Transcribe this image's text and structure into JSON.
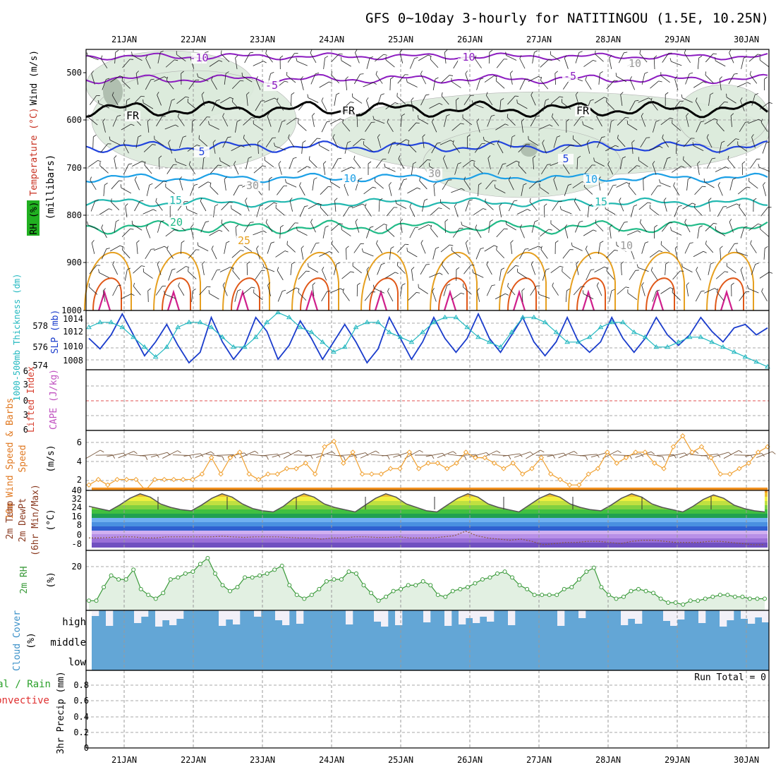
{
  "title": "GFS 0~10day 3-hourly for NATITINGOU (1.5E, 10.25N)",
  "days": [
    "21JAN",
    "22JAN",
    "23JAN",
    "24JAN",
    "25JAN",
    "26JAN",
    "27JAN",
    "28JAN",
    "29JAN",
    "30JAN"
  ],
  "colors": {
    "purple": "#8c1cc0",
    "blue": "#2244dd",
    "lightblue": "#1ca0e6",
    "teal": "#22b8b0",
    "green": "#22bb88",
    "orange": "#e6a020",
    "darkorange": "#e05818",
    "magenta": "#d0208c",
    "rhfill": "#dcebdc",
    "cloud": "#63a6d6",
    "slp": "#1a3ccc",
    "thick": "#22b8c0",
    "wind": "#f0a030",
    "temp": "#555555",
    "rh2m": "#3a9a3a"
  },
  "panels": {
    "upper": {
      "ylabel_wind": "Wind (m/s)",
      "ylabel_temp": "Temperature (°C)",
      "ylabel_mb": "(millibars)",
      "ylabel_rh": "RH (%)",
      "yticks": [
        "500",
        "600",
        "700",
        "800",
        "900",
        "1000"
      ],
      "contour_labels": {
        "m10": "-10",
        "m5": "-5",
        "fr": "FR",
        "c5": "5",
        "c10": "10",
        "c15": "15",
        "c20": "20",
        "c25": "25",
        "rh10": "10",
        "rh30": "30"
      }
    },
    "slp": {
      "ylabel_thick": "1000-500mb Thickness (dm)",
      "ylabel_slp": "SLP (mb)",
      "left_ticks": [
        "578",
        "576",
        "574"
      ],
      "right_ticks": [
        "1014",
        "1012",
        "1010",
        "1008"
      ]
    },
    "cape": {
      "ylabel_li": "Lifted Index",
      "ylabel_cape": "CAPE (J/kg)",
      "yticks": [
        "6",
        "3",
        "0",
        "3",
        "6"
      ]
    },
    "wind10m": {
      "ylabel": "10m Wind Speed & Barbs",
      "ylabel_speed": "Speed",
      "ylabel_unit": "(m/s)",
      "yticks": [
        "6",
        "4",
        "2"
      ]
    },
    "temp2m": {
      "ylabel": "2m Temp",
      "ylabel2": "2m DewPt",
      "ylabel3": "(6hr Min/Max)",
      "ylabel_unit": "(°C)",
      "yticks": [
        "40",
        "32",
        "24",
        "16",
        "8",
        "0",
        "-8"
      ]
    },
    "rh2m": {
      "ylabel": "2m RH",
      "ylabel_unit": "(%)",
      "yticks": [
        "20"
      ]
    },
    "cloud": {
      "ylabel": "Cloud Cover",
      "ylabel_unit": "(%)",
      "levels": [
        "high",
        "middle",
        "low"
      ]
    },
    "precip": {
      "ylabel": "3hr Precip (mm)",
      "ylabel_total": "Total / Rain",
      "ylabel_conv": "Convective",
      "yticks": [
        "0.8",
        "0.6",
        "0.4",
        "0.2",
        "0"
      ],
      "run_total": "Run Total = 0"
    }
  },
  "chart_data": [
    {
      "type": "line",
      "panel": "slp",
      "name": "SLP (mb)",
      "ylim": [
        1006.5,
        1015
      ],
      "values": [
        1011,
        1009.5,
        1011.5,
        1014.5,
        1011.5,
        1008.5,
        1010.5,
        1013,
        1010,
        1007.5,
        1009,
        1014,
        1010.5,
        1008,
        1010,
        1014,
        1012,
        1008,
        1010,
        1013.5,
        1011,
        1008,
        1010.5,
        1013,
        1010.5,
        1007.5,
        1009.5,
        1014,
        1011,
        1008,
        1010.5,
        1014,
        1011,
        1009,
        1011,
        1014.5,
        1011,
        1009,
        1011.5,
        1014,
        1010.5,
        1008.5,
        1010.5,
        1014,
        1010.5,
        1009,
        1010.5,
        1014,
        1011,
        1009,
        1011,
        1014,
        1011.5,
        1010,
        1011.5,
        1014,
        1012,
        1010.5,
        1012.5,
        1013,
        1011.5,
        1012.5
      ]
    },
    {
      "type": "line",
      "panel": "slp",
      "name": "1000-500mb Thickness (dm)",
      "ylim": [
        573.2,
        579.2
      ],
      "values": [
        577.5,
        578,
        578,
        577.5,
        576.5,
        575.5,
        574.5,
        575.5,
        577.5,
        578,
        578,
        577.5,
        576.5,
        575.5,
        575.5,
        576.5,
        578,
        579,
        578.5,
        577.5,
        577,
        576,
        575,
        575.5,
        577.5,
        578,
        578,
        577,
        576.5,
        576,
        577,
        578,
        578.5,
        578.5,
        577.5,
        576.5,
        576,
        575.5,
        577,
        578.5,
        578.5,
        578,
        577,
        576,
        576,
        576.5,
        577.5,
        578,
        578,
        577,
        576.5,
        575.5,
        575.5,
        576,
        576.5,
        576.5,
        576,
        575.5,
        575,
        574.5,
        574,
        573.5
      ]
    },
    {
      "type": "line",
      "panel": "wind10m",
      "name": "10m Wind Speed",
      "ylim": [
        1.5,
        7
      ],
      "values": [
        2,
        2.5,
        2,
        2.5,
        2.5,
        2.5,
        1.5,
        2.5,
        2.5,
        2.5,
        2.5,
        2.5,
        3,
        4.5,
        3,
        4.5,
        5,
        3,
        2.5,
        3,
        3,
        3.5,
        3.5,
        4,
        3,
        5.5,
        6,
        4,
        5,
        3,
        3,
        3,
        3.5,
        3.5,
        5,
        3.5,
        4,
        4,
        3.5,
        4,
        5,
        4.5,
        4.5,
        4,
        3.5,
        4,
        3,
        3.5,
        4.5,
        3,
        2.5,
        2,
        2,
        3,
        3.5,
        5,
        4,
        4.5,
        5,
        5,
        4,
        3.5,
        5.5,
        6.5,
        5,
        5.5,
        4.5,
        3,
        3,
        3.5,
        4,
        5,
        5.5
      ]
    },
    {
      "type": "area",
      "panel": "temp2m",
      "name": "2m Temp",
      "ylim": [
        -13,
        40
      ],
      "values": [
        26,
        24,
        22,
        27,
        33,
        37,
        34,
        28,
        25,
        23,
        22,
        27,
        33,
        37,
        34,
        28,
        24,
        22,
        21,
        26,
        33,
        37,
        34,
        28,
        25,
        23,
        21,
        27,
        33,
        37,
        34,
        28,
        25,
        22,
        21,
        27,
        33,
        37,
        34,
        28,
        25,
        23,
        21,
        27,
        33,
        37,
        34,
        28,
        25,
        23,
        22,
        27,
        33,
        37,
        34,
        28,
        25,
        23,
        21,
        26,
        32,
        36,
        33,
        27,
        24,
        22,
        21
      ]
    },
    {
      "type": "line",
      "panel": "temp2m",
      "name": "2m DewPt",
      "ylim": [
        -13,
        40
      ],
      "values": [
        -2,
        -2,
        -1.5,
        -1,
        -1,
        -2,
        -2,
        -1,
        -1,
        -1,
        -1,
        -1,
        -0.5,
        -1,
        -1.5,
        -1,
        -1,
        -1,
        -1.5,
        -2,
        -2,
        -3,
        -2,
        -2,
        -1,
        -1,
        -1.5,
        -1.5,
        -1,
        -2,
        -2,
        -2,
        -1,
        0,
        4,
        0,
        -2,
        -3,
        -4,
        -3,
        -5,
        -8,
        -7,
        -6,
        -6,
        -5,
        -5,
        -6,
        -7,
        -5,
        -4,
        -4,
        -5,
        -6,
        -6,
        -6,
        -5,
        -5,
        -6,
        -7,
        -8,
        -8
      ]
    },
    {
      "type": "line",
      "panel": "rh2m",
      "name": "2m RH",
      "ylim": [
        0,
        31
      ],
      "values": [
        5,
        5,
        12,
        18,
        16,
        16,
        21,
        11,
        8,
        6,
        9,
        16,
        17,
        19,
        20,
        24,
        27,
        19,
        13,
        10,
        12,
        17,
        17,
        18,
        19,
        21,
        23,
        13,
        8,
        6,
        8,
        11,
        15,
        16,
        16,
        20,
        19,
        13,
        9,
        5,
        7,
        10,
        11,
        13,
        13,
        15,
        13,
        8,
        7,
        10,
        11,
        12,
        14,
        16,
        17,
        19,
        20,
        17,
        13,
        11,
        8,
        8,
        8,
        8,
        11,
        12,
        16,
        20,
        22,
        12,
        8,
        6,
        7,
        10,
        11,
        10,
        9,
        6,
        4,
        4,
        3,
        5,
        5,
        6,
        7,
        8,
        8,
        7,
        7,
        6,
        6,
        6
      ]
    },
    {
      "type": "bar",
      "panel": "cloud",
      "name": "High cloud cover gaps",
      "values": [
        1,
        0,
        1,
        0,
        0,
        0,
        1,
        1,
        0,
        1,
        1,
        1,
        1,
        0,
        0,
        0,
        0,
        0,
        1,
        1,
        1,
        0,
        0,
        1,
        0,
        0,
        1,
        1,
        0,
        1,
        0,
        0,
        0,
        0,
        0,
        0,
        1,
        0,
        0,
        0,
        1,
        1,
        0,
        1,
        0,
        0,
        0,
        1,
        0,
        0,
        1,
        0,
        1,
        1,
        1,
        1,
        1,
        0,
        0,
        1,
        0,
        0,
        0,
        0,
        0,
        0,
        1,
        0,
        0,
        1,
        0,
        0,
        0,
        0,
        0,
        1,
        1,
        1,
        0,
        0,
        0,
        1,
        1,
        1,
        0,
        0,
        1,
        0,
        0,
        1,
        1,
        0,
        1,
        1,
        1,
        1
      ]
    },
    {
      "type": "line",
      "panel": "precip",
      "name": "3hr Precip (mm)",
      "ylim": [
        0,
        0.95
      ],
      "values": [
        0
      ]
    }
  ]
}
